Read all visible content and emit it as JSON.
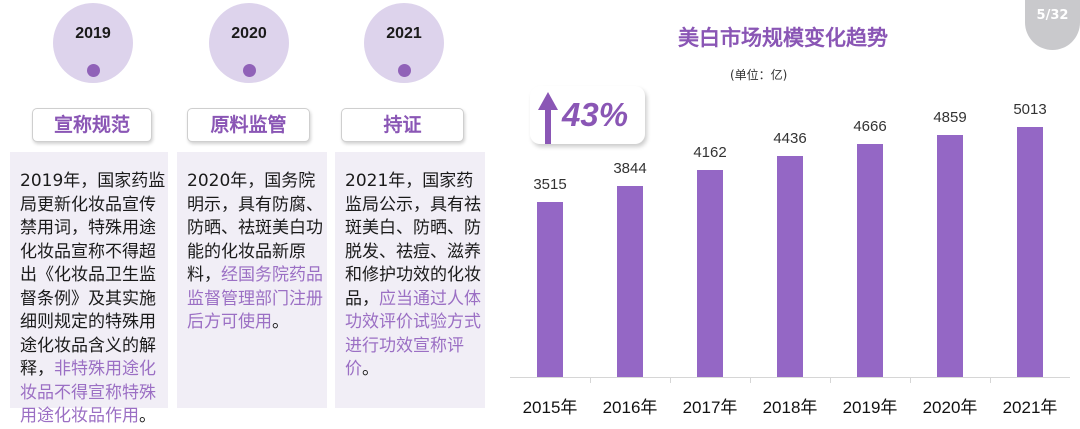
{
  "timeline": [
    {
      "year": "2019",
      "tag": "宣称规范",
      "text_plain": "2019年，国家药监局更新化妆品宣传禁用词，特殊用途化妆品宣称不得超出《化妆品卫生监督条例》及其实施细则规定的特殊用途化妆品含义的解释，",
      "text_highlight": "非特殊用途化妆品不得宣称特殊用途化妆品作用",
      "text_end": "。"
    },
    {
      "year": "2020",
      "tag": "原料监管",
      "text_plain": "2020年，国务院明示，具有防腐、防晒、祛斑美白功能的化妆品新原料，",
      "text_highlight": "经国务院药品监督管理部门注册后方可使用",
      "text_end": "。"
    },
    {
      "year": "2021",
      "tag": "持证",
      "text_plain": "2021年，国家药监局公示，具有祛斑美白、防晒、防脱发、祛痘、滋养和修护功效的化妆品，",
      "text_highlight": "应当通过人体功效评价试验方式进行功效宣称评价",
      "text_end": "。"
    }
  ],
  "page_badge": "5/32",
  "growth": {
    "value": "43%",
    "icon": "up-arrow-icon"
  },
  "colors": {
    "accent": "#8a56b5",
    "bar": "#9467c5",
    "circle": "#ddd3ec",
    "panel": "#f1eef6"
  },
  "chart_data": {
    "type": "bar",
    "title": "美白市场规模变化趋势",
    "subtitle": "(单位：亿)",
    "xlabel": "",
    "ylabel": "",
    "categories": [
      "2015年",
      "2016年",
      "2017年",
      "2018年",
      "2019年",
      "2020年",
      "2021年"
    ],
    "values": [
      3515,
      3844,
      4162,
      4436,
      4666,
      4859,
      5013
    ],
    "value_labels": [
      "3515",
      "3844",
      "4162",
      "4436",
      "4666",
      "4859",
      "5013"
    ],
    "annotation": "43%",
    "grid": false,
    "legend": null
  }
}
